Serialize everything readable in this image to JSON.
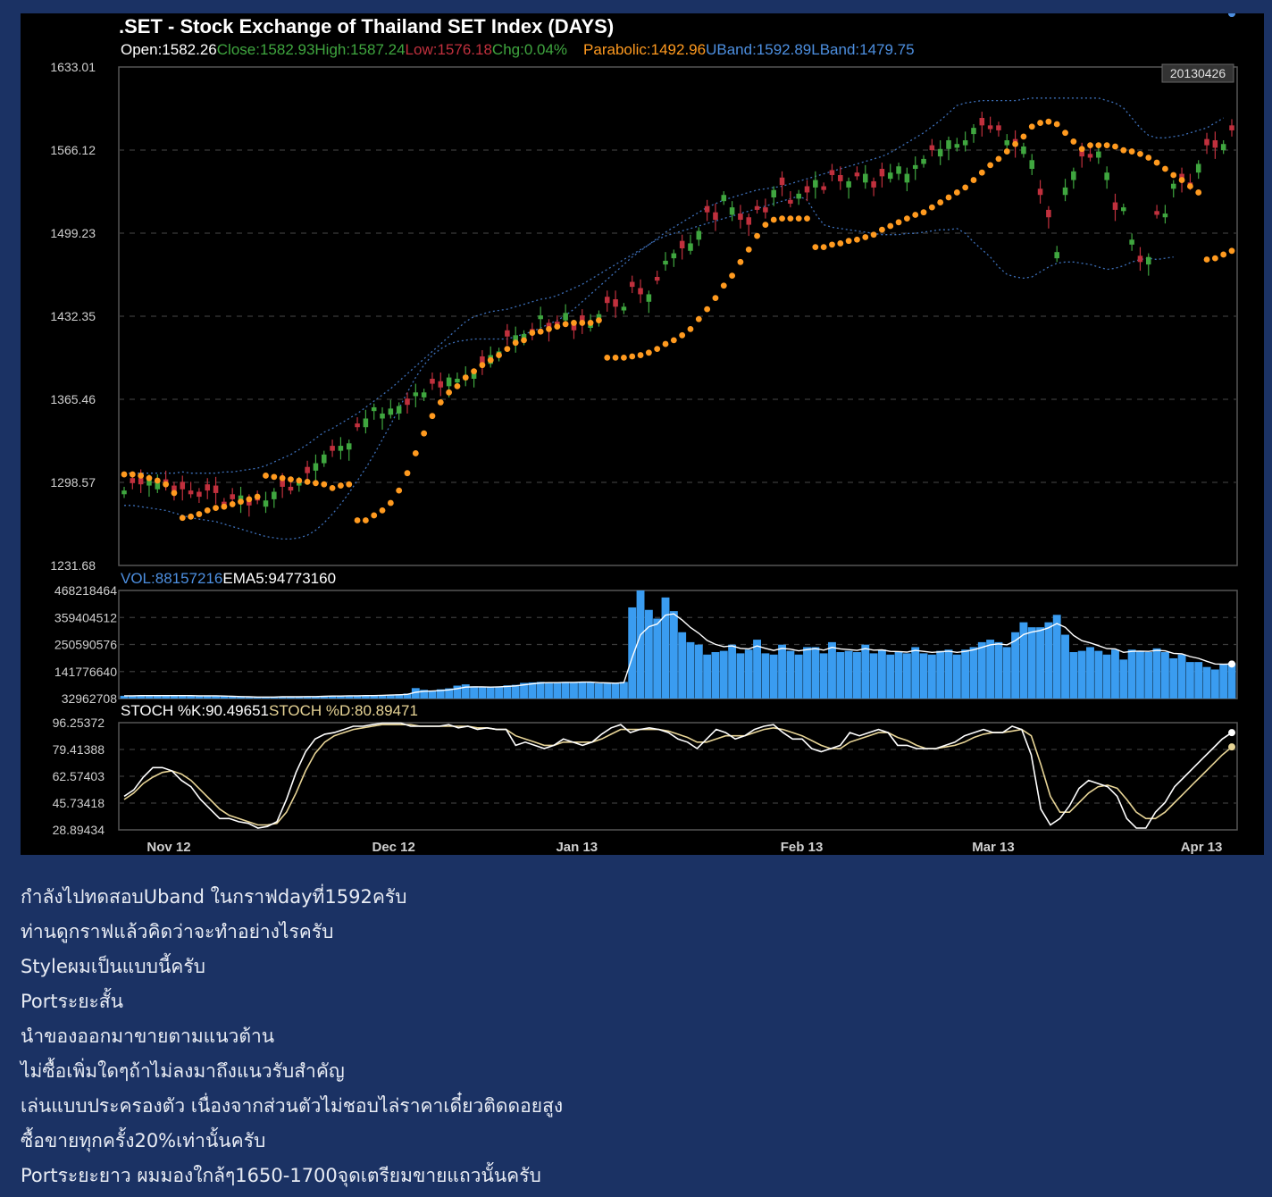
{
  "colors": {
    "background": "#1b3264",
    "chart_bg": "#000000",
    "bull": "#3fa63f",
    "bear": "#c0303d",
    "sar": "#ff9a1f",
    "band": "#3d6fb8",
    "volume": "#3a9cf0",
    "k_line": "#ffffff",
    "d_line": "#e7d496",
    "grid": "#3a3a3a",
    "info_open": "#ffffff",
    "info_close": "#3fa63f",
    "info_high": "#3fa63f",
    "info_low": "#c0303d",
    "info_chg": "#3fa63f",
    "info_parabolic": "#ff9a1f",
    "info_band": "#4d8fe0",
    "info_vol": "#4d8fe0"
  },
  "chart_data": [
    {
      "type": "candlestick",
      "title": ".SET - Stock Exchange of Thailand SET Index (DAYS)",
      "info_line": {
        "open": "Open:1582.26",
        "close": "Close:1582.93",
        "high": "High:1587.24",
        "low": "Low:1576.18",
        "chg": "Chg:0.04%",
        "parabolic": "Parabolic:1492.96",
        "uband": "UBand:1592.89",
        "lband": "LBand:1479.75"
      },
      "date_box": "20130426",
      "y_ticks": [
        "1633.01",
        "1566.12",
        "1499.23",
        "1432.35",
        "1365.46",
        "1298.57",
        "1231.68"
      ],
      "ylim": [
        1231.68,
        1633.01
      ],
      "x_ticks": [
        "Nov 12",
        "Dec 12",
        "Jan 13",
        "Feb 13",
        "Mar 13",
        "Apr 13"
      ],
      "x_tick_bar_index": [
        3,
        30,
        52,
        79,
        102,
        127
      ],
      "close": [
        1292,
        1298,
        1297,
        1302,
        1300,
        1297,
        1291,
        1293,
        1289,
        1287,
        1292,
        1290,
        1280,
        1285,
        1288,
        1280,
        1284,
        1284,
        1291,
        1295,
        1292,
        1300,
        1306,
        1314,
        1321,
        1324,
        1328,
        1330,
        1343,
        1350,
        1359,
        1354,
        1358,
        1360,
        1361,
        1371,
        1371,
        1378,
        1375,
        1383,
        1382,
        1385,
        1387,
        1394,
        1401,
        1404,
        1416,
        1417,
        1418,
        1418,
        1433,
        1421,
        1425,
        1435,
        1421,
        1427,
        1427,
        1434,
        1443,
        1440,
        1440,
        1456,
        1450,
        1450,
        1461,
        1477,
        1483,
        1487,
        1491,
        1501,
        1516,
        1510,
        1530,
        1520,
        1510,
        1506,
        1518,
        1516,
        1534,
        1538,
        1523,
        1531,
        1532,
        1542,
        1534,
        1546,
        1541,
        1541,
        1545,
        1547,
        1536,
        1545,
        1548,
        1553,
        1547,
        1554,
        1559,
        1566,
        1567,
        1574,
        1571,
        1574,
        1584,
        1586,
        1583,
        1582,
        1574,
        1569,
        1569,
        1558,
        1530,
        1512,
        1484,
        1536,
        1549,
        1561,
        1560,
        1565,
        1548,
        1518,
        1520,
        1494,
        1476,
        1480,
        1514,
        1515,
        1539,
        1541,
        1537,
        1555,
        1570,
        1568,
        1571,
        1582
      ],
      "sar_first_index": 0,
      "sar": [
        1305,
        1305,
        1304,
        1302,
        1300,
        1297,
        1290,
        1270,
        1271,
        1273,
        1276,
        1278,
        1279,
        1281,
        1283,
        1285,
        1287,
        1304,
        1303,
        1302,
        1301,
        1300,
        1299,
        1298,
        1297,
        1294,
        1296,
        1297,
        1268,
        1268,
        1272,
        1276,
        1282,
        1292,
        1306,
        1322,
        1338,
        1352,
        1363,
        1371,
        1376,
        1383,
        1388,
        1393,
        1397,
        1401,
        1406,
        1411,
        1413,
        1419,
        1420,
        1422,
        1424,
        1426,
        1427,
        1427,
        1427,
        1429,
        1399,
        1399,
        1399,
        1400,
        1401,
        1403,
        1406,
        1410,
        1413,
        1417,
        1422,
        1430,
        1438,
        1447,
        1457,
        1465,
        1476,
        1486,
        1497,
        1506,
        1510,
        1511,
        1511,
        1511,
        1511,
        1488,
        1488,
        1490,
        1491,
        1493,
        1494,
        1496,
        1498,
        1502,
        1505,
        1508,
        1511,
        1514,
        1516,
        1520,
        1524,
        1528,
        1532,
        1536,
        1542,
        1548,
        1554,
        1559,
        1565,
        1571,
        1577,
        1585,
        1588,
        1589,
        1587,
        1580,
        1573,
        1567,
        1570,
        1570,
        1570,
        1569,
        1566,
        1565,
        1563,
        1560,
        1556,
        1551,
        1546,
        1542,
        1537,
        1532,
        1478,
        1479,
        1482,
        1485,
        1489,
        1492
      ],
      "uband": [
        1306,
        1306,
        1306,
        1306,
        1306,
        1306,
        1306,
        1307,
        1306,
        1306,
        1306,
        1306,
        1307,
        1307,
        1308,
        1309,
        1310,
        1312,
        1315,
        1318,
        1321,
        1325,
        1329,
        1334,
        1339,
        1342,
        1346,
        1350,
        1354,
        1359,
        1364,
        1369,
        1374,
        1380,
        1386,
        1392,
        1398,
        1404,
        1410,
        1416,
        1422,
        1428,
        1432,
        1434,
        1436,
        1437,
        1438,
        1440,
        1442,
        1444,
        1446,
        1447,
        1449,
        1452,
        1455,
        1458,
        1462,
        1466,
        1470,
        1474,
        1478,
        1482,
        1486,
        1490,
        1495,
        1500,
        1504,
        1508,
        1512,
        1516,
        1520,
        1523,
        1526,
        1528,
        1530,
        1532,
        1534,
        1535,
        1536,
        1537,
        1539,
        1541,
        1543,
        1545,
        1547,
        1549,
        1551,
        1553,
        1555,
        1557,
        1559,
        1561,
        1564,
        1568,
        1572,
        1576,
        1580,
        1585,
        1590,
        1596,
        1602,
        1604,
        1605,
        1606,
        1606,
        1606,
        1606,
        1606,
        1607,
        1608,
        1608,
        1608,
        1608,
        1608,
        1608,
        1608,
        1608,
        1608,
        1606,
        1604,
        1600,
        1592,
        1584,
        1578,
        1576,
        1576,
        1577,
        1578,
        1580,
        1582,
        1584,
        1588,
        1592
      ],
      "lband": [
        1280,
        1280,
        1279,
        1278,
        1277,
        1276,
        1274,
        1272,
        1270,
        1269,
        1268,
        1267,
        1265,
        1263,
        1261,
        1259,
        1257,
        1255,
        1254,
        1253,
        1253,
        1254,
        1256,
        1260,
        1266,
        1273,
        1281,
        1290,
        1300,
        1310,
        1321,
        1333,
        1345,
        1358,
        1371,
        1383,
        1393,
        1401,
        1406,
        1410,
        1412,
        1413,
        1414,
        1414,
        1414,
        1414,
        1414,
        1416,
        1418,
        1420,
        1423,
        1426,
        1429,
        1433,
        1438,
        1444,
        1450,
        1456,
        1462,
        1468,
        1474,
        1480,
        1485,
        1490,
        1494,
        1497,
        1499,
        1501,
        1503,
        1505,
        1507,
        1509,
        1511,
        1513,
        1515,
        1517,
        1519,
        1521,
        1523,
        1525,
        1527,
        1529,
        1526,
        1515,
        1506,
        1504,
        1503,
        1502,
        1501,
        1500,
        1499,
        1498,
        1498,
        1498,
        1499,
        1499,
        1500,
        1501,
        1502,
        1502,
        1503,
        1499,
        1492,
        1486,
        1480,
        1472,
        1466,
        1464,
        1463,
        1464,
        1468,
        1472,
        1475,
        1476,
        1476,
        1475,
        1474,
        1472,
        1470,
        1471,
        1473,
        1476,
        1478,
        1479,
        1478,
        1479,
        1480
      ],
      "ohlc_note": "Open values derived for rendering only in script from close series"
    },
    {
      "type": "bar",
      "label_vol": "VOL:88157216",
      "label_ema": "EMA5:94773160",
      "y_ticks": [
        "468218464",
        "359404512",
        "250590576",
        "141776640",
        "32962708"
      ],
      "ylim": [
        32962708,
        468218464
      ],
      "values": [
        44,
        45,
        46,
        45,
        45,
        44,
        45,
        44,
        45,
        43,
        44,
        43,
        42,
        40,
        39,
        38,
        38,
        38,
        40,
        41,
        40,
        41,
        42,
        42,
        43,
        43,
        44,
        44,
        45,
        45,
        46,
        47,
        48,
        50,
        53,
        75,
        68,
        65,
        70,
        74,
        85,
        90,
        82,
        80,
        78,
        80,
        86,
        88,
        96,
        98,
        100,
        98,
        96,
        100,
        98,
        100,
        98,
        94,
        94,
        94,
        100,
        400,
        470,
        390,
        355,
        440,
        385,
        300,
        260,
        250,
        210,
        220,
        225,
        250,
        215,
        230,
        270,
        215,
        210,
        250,
        225,
        210,
        240,
        240,
        215,
        260,
        220,
        225,
        220,
        250,
        215,
        230,
        210,
        220,
        215,
        240,
        215,
        210,
        225,
        230,
        210,
        230,
        240,
        260,
        270,
        260,
        240,
        300,
        340,
        320,
        320,
        340,
        370,
        290,
        220,
        225,
        240,
        225,
        210,
        230,
        190,
        230,
        225,
        220,
        235,
        220,
        195,
        210,
        180,
        180,
        160,
        150,
        170,
        175,
        170,
        165,
        160,
        160,
        170,
        168
      ],
      "ema": [
        44,
        44,
        45,
        45,
        45,
        45,
        45,
        45,
        45,
        44,
        44,
        44,
        43,
        42,
        41,
        40,
        39,
        39,
        39,
        40,
        40,
        40,
        41,
        41,
        42,
        43,
        43,
        44,
        44,
        45,
        45,
        46,
        47,
        48,
        50,
        58,
        62,
        63,
        65,
        68,
        73,
        79,
        80,
        80,
        79,
        80,
        82,
        84,
        88,
        92,
        96,
        97,
        97,
        98,
        98,
        99,
        99,
        97,
        96,
        95,
        97,
        198,
        289,
        322,
        333,
        369,
        374,
        349,
        319,
        296,
        267,
        251,
        242,
        245,
        235,
        233,
        245,
        235,
        227,
        235,
        232,
        225,
        230,
        234,
        228,
        239,
        233,
        230,
        227,
        234,
        228,
        229,
        223,
        222,
        220,
        227,
        223,
        219,
        221,
        224,
        219,
        223,
        229,
        239,
        249,
        253,
        249,
        266,
        291,
        301,
        307,
        318,
        335,
        320,
        287,
        266,
        257,
        246,
        234,
        233,
        219,
        223,
        224,
        223,
        227,
        225,
        215,
        213,
        202,
        195,
        183,
        172,
        171,
        172,
        171,
        169,
        166,
        164,
        166,
        167
      ],
      "ema_unit": "1e6 scale approximated; values are in millions relative"
    },
    {
      "type": "line",
      "label_k": "STOCH %K:90.49651",
      "label_d": "STOCH %D:80.89471",
      "y_ticks": [
        "96.25372",
        "79.41388",
        "62.57403",
        "45.73418",
        "28.89434"
      ],
      "ylim": [
        28.89434,
        96.25372
      ],
      "series": [
        {
          "name": "STOCH %K",
          "values": [
            50,
            54,
            62,
            68,
            68,
            66,
            60,
            56,
            48,
            42,
            36,
            36,
            34,
            33,
            30,
            31,
            34,
            48,
            65,
            78,
            86,
            89,
            90,
            92,
            94,
            94,
            95,
            96,
            96,
            96,
            94,
            94,
            94,
            94,
            95,
            93,
            94,
            92,
            93,
            92,
            92,
            82,
            84,
            82,
            80,
            82,
            86,
            84,
            82,
            84,
            89,
            93,
            95,
            90,
            92,
            93,
            92,
            90,
            86,
            84,
            80,
            86,
            92,
            90,
            86,
            88,
            92,
            94,
            95,
            90,
            86,
            86,
            80,
            78,
            80,
            82,
            90,
            88,
            90,
            92,
            90,
            82,
            82,
            80,
            80,
            80,
            82,
            84,
            88,
            90,
            92,
            90,
            90,
            94,
            92,
            76,
            42,
            32,
            36,
            44,
            55,
            60,
            58,
            56,
            50,
            36,
            30,
            30,
            40,
            46,
            56,
            62,
            68,
            74,
            80,
            86,
            90
          ]
        },
        {
          "name": "STOCH %D",
          "values": [
            48,
            52,
            58,
            62,
            65,
            66,
            64,
            60,
            54,
            48,
            42,
            38,
            36,
            34,
            32,
            32,
            33,
            40,
            52,
            66,
            77,
            84,
            88,
            90,
            92,
            93,
            94,
            95,
            95,
            95,
            95,
            94,
            94,
            94,
            94,
            94,
            94,
            93,
            93,
            92,
            92,
            88,
            86,
            84,
            82,
            82,
            84,
            84,
            84,
            84,
            86,
            89,
            92,
            92,
            92,
            92,
            92,
            91,
            89,
            87,
            84,
            84,
            86,
            88,
            88,
            88,
            90,
            92,
            93,
            92,
            90,
            88,
            85,
            82,
            80,
            80,
            84,
            86,
            88,
            90,
            90,
            87,
            85,
            82,
            80,
            80,
            81,
            82,
            84,
            87,
            89,
            90,
            90,
            91,
            92,
            88,
            70,
            50,
            40,
            40,
            46,
            52,
            56,
            57,
            55,
            48,
            40,
            36,
            36,
            40,
            46,
            52,
            58,
            64,
            70,
            76,
            81
          ]
        }
      ]
    }
  ],
  "post": {
    "lines": [
      "กำลังไปทดสอบUband ในกราฟdayที่1592ครับ",
      "ท่านดูกราฟแล้วคิดว่าจะทำอย่างไรครับ",
      "Styleผมเป็นแบบนี้ครับ",
      "Portระยะสั้น",
      "นำของออกมาขายตามแนวต้าน",
      "ไม่ซื้อเพิ่มใดๆถ้าไม่ลงมาถึงแนวรับสำคัญ",
      "เล่นแบบประครองตัว เนื่องจากส่วนตัวไม่ชอบไล่ราคาเดี๋ยวติดดอยสูง",
      "ซื้อขายทุกครั้ง20%เท่านั้นครับ",
      "Portระยะยาว ผมมองใกล้ๆ1650-1700จุดเตรียมขายแถวนั้นครับ"
    ]
  }
}
